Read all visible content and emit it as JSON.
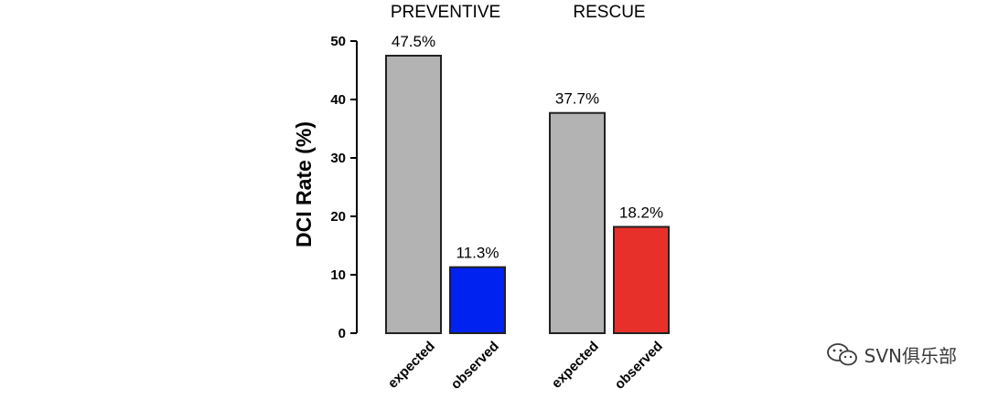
{
  "chart_data": {
    "type": "bar",
    "ylabel": "DCI Rate (%)",
    "ylim": [
      0,
      50
    ],
    "yticks": [
      0,
      10,
      20,
      30,
      40,
      50
    ],
    "grid": false,
    "groups": [
      {
        "name": "PREVENTIVE",
        "bars": [
          {
            "category": "expected",
            "value": 47.5,
            "label": "47.5%",
            "color": "#b3b3b3"
          },
          {
            "category": "observed",
            "value": 11.3,
            "label": "11.3%",
            "color": "#0022f0"
          }
        ]
      },
      {
        "name": "RESCUE",
        "bars": [
          {
            "category": "expected",
            "value": 37.7,
            "label": "37.7%",
            "color": "#b3b3b3"
          },
          {
            "category": "observed",
            "value": 18.2,
            "label": "18.2%",
            "color": "#e8302a"
          }
        ]
      }
    ]
  },
  "watermark": {
    "text": "SVN俱乐部",
    "icon": "wechat-icon"
  }
}
